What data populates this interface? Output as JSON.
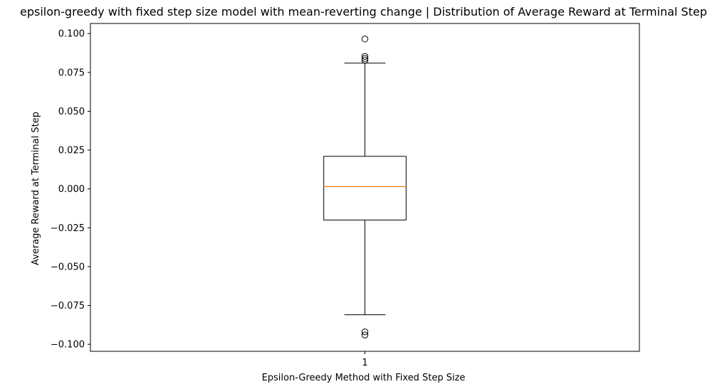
{
  "chart_data": {
    "type": "box",
    "title": "epsilon-greedy with fixed step size model with mean-reverting change | Distribution of Average Reward at Terminal Step",
    "xlabel": "Epsilon-Greedy Method with Fixed Step Size",
    "ylabel": "Average Reward at Terminal Step",
    "categories": [
      "1"
    ],
    "ylim": [
      -0.1045,
      0.1065
    ],
    "yticks": [
      -0.1,
      -0.075,
      -0.05,
      -0.025,
      0.0,
      0.025,
      0.05,
      0.075,
      0.1
    ],
    "ytick_labels": [
      "−0.100",
      "−0.075",
      "−0.050",
      "−0.025",
      "0.000",
      "0.025",
      "0.050",
      "0.075",
      "0.100"
    ],
    "xlim": [
      0.5,
      1.5
    ],
    "boxes": [
      {
        "label": "1",
        "whisker_low": -0.081,
        "q1": -0.02,
        "median": 0.0015,
        "q3": 0.021,
        "whisker_high": 0.081,
        "outliers": [
          0.0965,
          0.0853,
          0.084,
          0.0828,
          -0.092,
          -0.094
        ]
      }
    ],
    "grid": false,
    "colors": {
      "box": "#000000",
      "median": "#ff7f0e",
      "outlier": "#000000"
    }
  }
}
